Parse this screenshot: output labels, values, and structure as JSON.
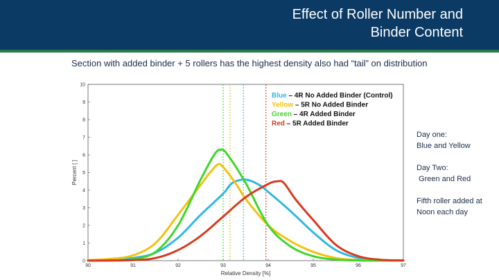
{
  "slide": {
    "title_line1": "Effect of Roller Number and",
    "title_line2": "Binder Content",
    "intro": "Section with added binder + 5 rollers has the highest density also had “tail” on distribution",
    "notes": {
      "day_one_label": "Day one:",
      "day_one_value": "Blue and Yellow",
      "day_two_label": "Day Two:",
      "day_two_value": " Green and Red",
      "fifth_roller": "Fifth roller added at Noon each day"
    }
  },
  "colors": {
    "header_bg": "#0b3a64",
    "accent_rule": "#2a7a45",
    "blue": "#2fb8e0",
    "yellow": "#f2c20f",
    "green": "#3fd62a",
    "red": "#d63a1e"
  },
  "chart_data": {
    "type": "line",
    "xlabel": "Relative Density [%]",
    "ylabel": "Percent [ ]",
    "xlim": [
      90,
      97
    ],
    "ylim": [
      0,
      10
    ],
    "xticks": [
      "90",
      "91",
      "92",
      "93",
      "94",
      "95",
      "96",
      "97"
    ],
    "yticks": [
      "0",
      "1",
      "2",
      "3",
      "4",
      "5",
      "6",
      "7",
      "8",
      "9",
      "10"
    ],
    "grid": false,
    "legend_position": "top-right",
    "legend": [
      {
        "key": "Blue",
        "dash": "–",
        "text": "4R No Added Binder (Control)",
        "color": "#2fb8e0"
      },
      {
        "key": "Yellow",
        "dash": "–",
        "text": "5R No Added Binder",
        "color": "#f2c20f"
      },
      {
        "key": "Green",
        "dash": "–",
        "text": "4R  Added Binder",
        "color": "#3fd62a"
      },
      {
        "key": "Red",
        "dash": "–",
        "text": "5R  Added Binder",
        "color": "#d63a1e"
      }
    ],
    "series": [
      {
        "color": "#2fb8e0",
        "mean": 93.45,
        "points": [
          [
            90,
            0.02
          ],
          [
            90.5,
            0.05
          ],
          [
            91,
            0.15
          ],
          [
            91.5,
            0.45
          ],
          [
            92,
            1.3
          ],
          [
            92.5,
            2.6
          ],
          [
            93,
            3.8
          ],
          [
            93.2,
            4.4
          ],
          [
            93.5,
            4.6
          ],
          [
            93.8,
            4.3
          ],
          [
            94,
            3.9
          ],
          [
            94.5,
            2.8
          ],
          [
            95,
            1.6
          ],
          [
            95.5,
            0.6
          ],
          [
            96,
            0.15
          ],
          [
            96.5,
            0.04
          ],
          [
            97,
            0.01
          ]
        ]
      },
      {
        "color": "#f2c20f",
        "mean": 93.15,
        "points": [
          [
            90,
            0.03
          ],
          [
            90.5,
            0.1
          ],
          [
            91,
            0.3
          ],
          [
            91.5,
            1.0
          ],
          [
            92,
            2.6
          ],
          [
            92.5,
            4.3
          ],
          [
            92.85,
            5.4
          ],
          [
            93,
            5.3
          ],
          [
            93.3,
            4.3
          ],
          [
            93.5,
            3.5
          ],
          [
            94,
            2.0
          ],
          [
            94.5,
            1.1
          ],
          [
            95,
            0.5
          ],
          [
            95.5,
            0.15
          ],
          [
            96,
            0.04
          ],
          [
            97,
            0.0
          ]
        ]
      },
      {
        "color": "#3fd62a",
        "mean": 93.0,
        "points": [
          [
            90,
            0.0
          ],
          [
            90.5,
            0.02
          ],
          [
            91,
            0.08
          ],
          [
            91.5,
            0.5
          ],
          [
            92,
            2.0
          ],
          [
            92.5,
            4.6
          ],
          [
            92.8,
            6.0
          ],
          [
            92.95,
            6.3
          ],
          [
            93.1,
            6.0
          ],
          [
            93.5,
            4.4
          ],
          [
            94,
            2.0
          ],
          [
            94.5,
            0.8
          ],
          [
            95,
            0.25
          ],
          [
            95.5,
            0.06
          ],
          [
            96,
            0.01
          ],
          [
            97,
            0.0
          ]
        ]
      },
      {
        "color": "#d63a1e",
        "mean": 93.95,
        "points": [
          [
            90,
            0.0
          ],
          [
            91,
            0.03
          ],
          [
            91.5,
            0.15
          ],
          [
            92,
            0.6
          ],
          [
            92.5,
            1.4
          ],
          [
            93,
            2.5
          ],
          [
            93.5,
            3.6
          ],
          [
            94,
            4.35
          ],
          [
            94.2,
            4.5
          ],
          [
            94.35,
            4.4
          ],
          [
            94.6,
            3.5
          ],
          [
            95,
            2.3
          ],
          [
            95.5,
            0.9
          ],
          [
            96,
            0.25
          ],
          [
            96.5,
            0.05
          ],
          [
            97,
            0.01
          ]
        ]
      }
    ]
  }
}
